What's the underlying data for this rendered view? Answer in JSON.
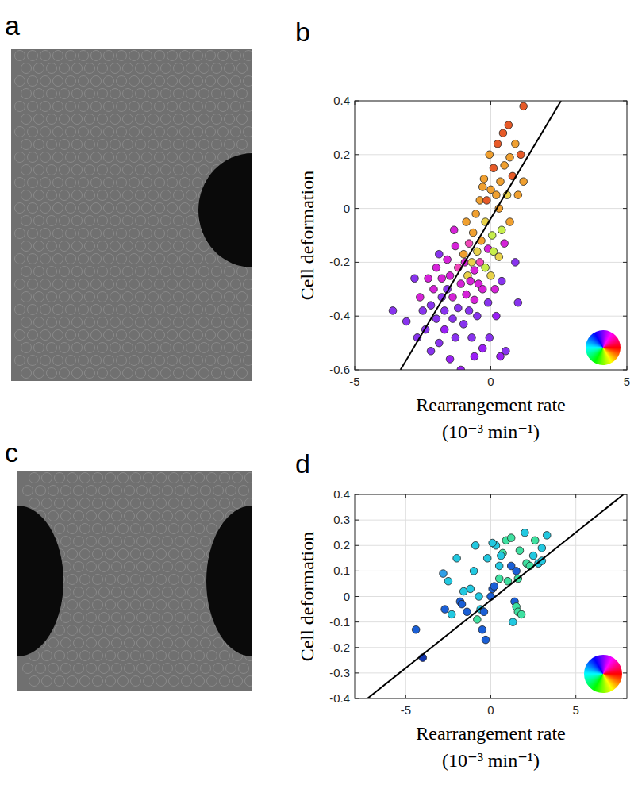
{
  "image_panels": [
    {
      "label": "a"
    },
    {
      "label": "c"
    }
  ],
  "chart_data": [
    {
      "type": "scatter",
      "panel_label": "b",
      "y_label": "Cell deformation",
      "x_label": [
        "Rearrangement rate",
        "(10⁻³ min⁻¹)"
      ],
      "xlim": [
        -5,
        5
      ],
      "xticks": [
        -5,
        0,
        5
      ],
      "ylim": [
        -0.6,
        0.4
      ],
      "yticks": [
        -0.6,
        -0.4,
        -0.2,
        0,
        0.2,
        0.4
      ],
      "grid": true,
      "series": [
        {
          "type": "scatter",
          "marker": "circle",
          "x": [
            -3.6,
            -3.1,
            -2.8,
            -2.7,
            -2.6,
            -2.5,
            -2.4,
            -2.3,
            -2.2,
            -2.1,
            -2.0,
            -2.0,
            -1.9,
            -1.9,
            -1.8,
            -1.8,
            -1.7,
            -1.7,
            -1.6,
            -1.6,
            -1.5,
            -1.5,
            -1.4,
            -1.4,
            -1.3,
            -1.3,
            -1.2,
            -1.2,
            -1.1,
            -1.1,
            -1.0,
            -1.0,
            -0.95,
            -0.9,
            -0.9,
            -0.85,
            -0.8,
            -0.8,
            -0.75,
            -0.7,
            -0.7,
            -0.65,
            -0.6,
            -0.6,
            -0.55,
            -0.5,
            -0.5,
            -0.45,
            -0.4,
            -0.4,
            -0.35,
            -0.3,
            -0.3,
            -0.25,
            -0.2,
            -0.2,
            -0.15,
            -0.1,
            -0.1,
            -0.05,
            0.0,
            0.0,
            0.05,
            0.1,
            0.1,
            0.15,
            0.2,
            0.2,
            0.25,
            0.3,
            0.3,
            0.35,
            0.4,
            0.4,
            0.45,
            0.5,
            0.5,
            0.55,
            0.6,
            0.65,
            0.7,
            0.7,
            0.8,
            0.9,
            0.9,
            1.0,
            1.0,
            1.1,
            1.2,
            1.2,
            -0.6,
            -2.2,
            -1.35,
            -0.05,
            0.35,
            -0.3
          ],
          "values": [
            -0.38,
            -0.42,
            -0.26,
            -0.48,
            -0.33,
            -0.38,
            -0.45,
            -0.26,
            -0.36,
            -0.3,
            -0.41,
            -0.22,
            -0.17,
            -0.5,
            -0.33,
            -0.26,
            -0.45,
            -0.38,
            -0.19,
            -0.3,
            -0.56,
            -0.25,
            -0.41,
            -0.33,
            -0.14,
            -0.48,
            -0.22,
            -0.37,
            -0.28,
            -0.6,
            -0.17,
            -0.43,
            -0.2,
            -0.32,
            -0.05,
            -0.25,
            -0.38,
            -0.13,
            -0.27,
            -0.48,
            -0.2,
            -0.09,
            -0.34,
            -0.23,
            -0.02,
            -0.16,
            -0.4,
            -0.28,
            0.03,
            -0.2,
            -0.12,
            -0.3,
            -0.52,
            0.11,
            -0.22,
            -0.05,
            0.03,
            -0.35,
            -0.15,
            0.2,
            -0.25,
            0.07,
            -0.1,
            -0.16,
            0.15,
            -0.3,
            0.05,
            -0.4,
            0.24,
            -0.18,
            0.0,
            0.1,
            -0.08,
            -0.27,
            0.28,
            0.16,
            -0.13,
            -0.53,
            0.05,
            0.31,
            0.19,
            -0.05,
            0.12,
            -0.2,
            0.24,
            0.05,
            -0.35,
            0.2,
            0.38,
            0.1,
            -0.55,
            -0.53,
            -0.08,
            -0.48,
            -0.55,
            0.08
          ],
          "colors": [
            "#8833ee",
            "#8833ee",
            "#8833ee",
            "#8833ee",
            "#d522d8",
            "#8833ee",
            "#8833ee",
            "#d522d8",
            "#8833ee",
            "#d522d8",
            "#8833ee",
            "#d522d8",
            "#8833ee",
            "#8833ee",
            "#8833ee",
            "#d522d8",
            "#9a1ff5",
            "#8833ee",
            "#d522d8",
            "#8833ee",
            "#9a1ff5",
            "#d522d8",
            "#8833ee",
            "#d522d8",
            "#d522d8",
            "#8833ee",
            "#f048b8",
            "#8833ee",
            "#d522d8",
            "#9a1ff5",
            "#f0a030",
            "#8833ee",
            "#d522d8",
            "#d522d8",
            "#f0a030",
            "#e8d24a",
            "#8833ee",
            "#f048b8",
            "#d522d8",
            "#8833ee",
            "#e8d24a",
            "#f0a030",
            "#d522d8",
            "#d522d8",
            "#f0a030",
            "#e8d24a",
            "#8833ee",
            "#d522d8",
            "#f0a030",
            "#f048b8",
            "#f0a030",
            "#d522d8",
            "#9a1ff5",
            "#f0a030",
            "#c6ee4c",
            "#e8d24a",
            "#e65a28",
            "#8833ee",
            "#d522d8",
            "#f0a030",
            "#e8d24a",
            "#f0a030",
            "#c6ee4c",
            "#c6ee4c",
            "#e65a28",
            "#d522d8",
            "#f0a030",
            "#9a1ff5",
            "#e65a28",
            "#e8d24a",
            "#f0a030",
            "#f0a030",
            "#c6ee4c",
            "#8833ee",
            "#e65a28",
            "#f0a030",
            "#d522d8",
            "#8833ee",
            "#e8d24a",
            "#e65a28",
            "#f0a030",
            "#f0a030",
            "#e65a28",
            "#8833ee",
            "#f0a030",
            "#f0a030",
            "#8833ee",
            "#e65a28",
            "#e65a28",
            "#f0a030",
            "#9a1ff5",
            "#8833ee",
            "#d522d8",
            "#8833ee",
            "#9a1ff5",
            "#f0a030"
          ]
        },
        {
          "type": "line",
          "line_style": "solid",
          "color": "#000000",
          "x": [
            -3.32,
            2.58
          ],
          "values": [
            -0.6,
            0.4
          ]
        }
      ]
    },
    {
      "type": "scatter",
      "panel_label": "d",
      "y_label": "Cell deformation",
      "x_label": [
        "Rearrangement rate",
        "(10⁻³ min⁻¹)"
      ],
      "xlim": [
        -8,
        8
      ],
      "xticks": [
        -5,
        0,
        5
      ],
      "ylim": [
        -0.4,
        0.4
      ],
      "yticks": [
        -0.4,
        -0.3,
        -0.2,
        -0.1,
        0,
        0.1,
        0.2,
        0.3,
        0.4
      ],
      "grid": true,
      "series": [
        {
          "type": "scatter",
          "marker": "circle",
          "x": [
            -4.4,
            -4.0,
            -2.8,
            -2.7,
            -2.5,
            -2.3,
            -2.0,
            -1.8,
            -1.7,
            -1.4,
            -1.2,
            -1.0,
            -0.9,
            -0.8,
            -0.7,
            -0.6,
            -0.5,
            -0.4,
            -0.3,
            -0.2,
            0.0,
            0.1,
            0.2,
            0.3,
            0.1,
            0.5,
            0.5,
            0.7,
            0.9,
            1.0,
            1.2,
            1.2,
            1.3,
            1.4,
            1.5,
            1.5,
            1.6,
            1.6,
            1.7,
            1.8,
            2.0,
            2.1,
            2.3,
            2.5,
            2.6,
            2.8,
            3.0,
            3.0,
            3.3,
            -1.6,
            0.6
          ],
          "values": [
            -0.13,
            -0.24,
            0.09,
            -0.05,
            0.06,
            -0.07,
            0.15,
            -0.02,
            -0.03,
            -0.06,
            0.03,
            0.1,
            0.2,
            -0.09,
            0.0,
            -0.05,
            -0.13,
            -0.06,
            -0.17,
            0.15,
            0.0,
            0.03,
            0.04,
            0.2,
            0.21,
            0.12,
            0.07,
            0.17,
            0.22,
            0.06,
            0.23,
            0.12,
            -0.1,
            -0.02,
            0.1,
            -0.04,
            0.07,
            -0.06,
            0.18,
            -0.07,
            0.25,
            0.13,
            0.12,
            0.16,
            0.22,
            0.13,
            0.14,
            0.19,
            0.24,
            0.02,
            0.16
          ],
          "colors": [
            "#1a5fd6",
            "#1236b0",
            "#30a0e8",
            "#1a5fd6",
            "#22c8e0",
            "#22c8e0",
            "#22c8e0",
            "#1a5fd6",
            "#1a5fd6",
            "#1a5fd6",
            "#22c8e0",
            "#22c8e0",
            "#22c8e0",
            "#3ee0a0",
            "#22c8e0",
            "#22c8e0",
            "#1a5fd6",
            "#1a5fd6",
            "#1a5fd6",
            "#22c8e0",
            "#1a5fd6",
            "#1a5fd6",
            "#1a5fd6",
            "#22c8e0",
            "#22c8e0",
            "#22c8e0",
            "#3ee0a0",
            "#3ee0a0",
            "#3ee0a0",
            "#3ee0a0",
            "#3ee0a0",
            "#1a5fd6",
            "#22c8e0",
            "#1a5fd6",
            "#1a5fd6",
            "#3ee0a0",
            "#3ee0a0",
            "#3ee0a0",
            "#3ee0a0",
            "#3ee0a0",
            "#22c8e0",
            "#3ee0a0",
            "#3ee0a0",
            "#22c8e0",
            "#3ee0a0",
            "#22c8e0",
            "#22c8e0",
            "#22c8e0",
            "#22c8e0",
            "#22c8e0",
            "#22c8e0"
          ]
        },
        {
          "type": "line",
          "line_style": "solid",
          "color": "#000000",
          "x": [
            -7.25,
            7.8
          ],
          "values": [
            -0.4,
            0.4
          ]
        }
      ]
    }
  ]
}
